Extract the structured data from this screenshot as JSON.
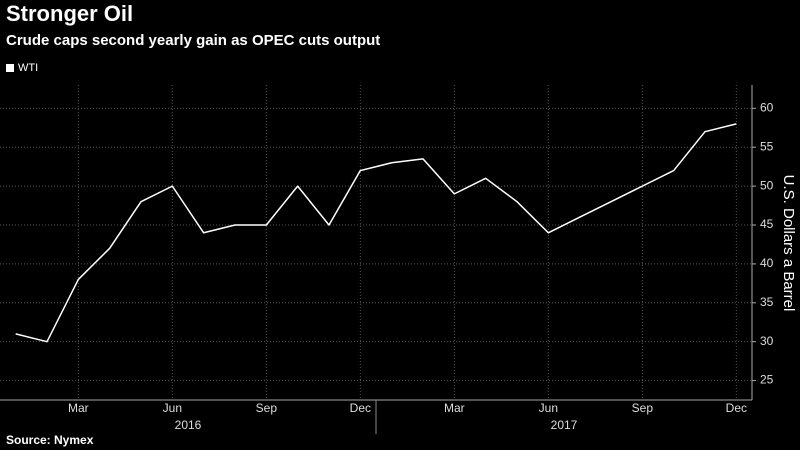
{
  "chart_data": {
    "type": "line",
    "title": "Stronger Oil",
    "subtitle": "Crude caps second yearly gain as OPEC cuts output",
    "source": "Source: Nymex",
    "y_axis_label": "U.S. Dollars a Barrel",
    "x": [
      "2016-01",
      "2016-02",
      "2016-03",
      "2016-04",
      "2016-05",
      "2016-06",
      "2016-07",
      "2016-08",
      "2016-09",
      "2016-10",
      "2016-11",
      "2016-12",
      "2017-01",
      "2017-02",
      "2017-03",
      "2017-04",
      "2017-05",
      "2017-06",
      "2017-07",
      "2017-08",
      "2017-09",
      "2017-10",
      "2017-11",
      "2017-12"
    ],
    "series": [
      {
        "name": "WTI",
        "color": "#ffffff",
        "values": [
          31,
          30,
          38,
          42,
          48,
          50,
          44,
          45,
          45,
          50,
          45,
          52,
          53,
          53.5,
          49,
          51,
          48,
          44,
          46,
          48,
          50,
          52,
          57,
          58
        ]
      }
    ],
    "xlim": [
      "2016-01",
      "2017-12"
    ],
    "xticks": [
      {
        "value": "2016-03",
        "label": "Mar"
      },
      {
        "value": "2016-06",
        "label": "Jun"
      },
      {
        "value": "2016-09",
        "label": "Sep"
      },
      {
        "value": "2016-12",
        "label": "Dec"
      },
      {
        "value": "2017-03",
        "label": "Mar"
      },
      {
        "value": "2017-06",
        "label": "Jun"
      },
      {
        "value": "2017-09",
        "label": "Sep"
      },
      {
        "value": "2017-12",
        "label": "Dec"
      }
    ],
    "years": [
      "2016",
      "2017"
    ],
    "ylim": [
      22.5,
      63
    ],
    "yticks": [
      25,
      30,
      35,
      40,
      45,
      50,
      55,
      60
    ],
    "y_axis_side": "right",
    "grid": true,
    "legend": "top-left"
  }
}
